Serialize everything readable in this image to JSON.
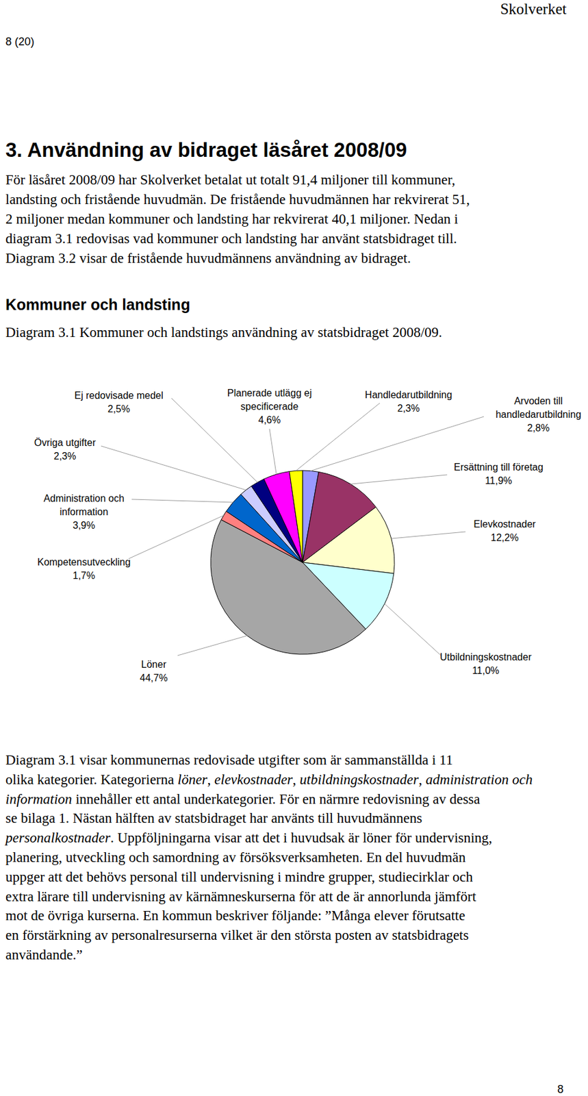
{
  "header": {
    "page": "8 (20)",
    "publisher": "Skolverket"
  },
  "title": "3. Användning av bidraget läsåret 2008/09",
  "intro": [
    "För läsåret 2008/09 har Skolverket betalat ut totalt 91,4 miljoner till kommuner,",
    "landsting och fristående huvudmän. De fristående huvudmännen har rekvirerat 51,",
    "2 miljoner medan kommuner och landsting har rekvirerat 40,1 miljoner. Nedan i",
    "diagram 3.1 redovisas vad kommuner och landsting har använt statsbidraget till.",
    "Diagram 3.2 visar de fristående huvudmännens användning av bidraget."
  ],
  "subheading": "Kommuner och landsting",
  "caption": "Diagram 3.1 Kommuner och landstings användning av statsbidraget 2008/09.",
  "chart_data": {
    "type": "pie",
    "categories": [
      "Arvoden till handledarutbildning",
      "Ersättning till företag",
      "Elevkostnader",
      "Utbildningskostnader",
      "Löner",
      "Kompetensutveckling",
      "Administration och information",
      "Övriga utgifter",
      "Ej redovisade medel",
      "Planerade utlägg ej specificerade",
      "Handledarutbildning"
    ],
    "values": [
      2.8,
      11.9,
      12.2,
      11.0,
      44.7,
      1.7,
      3.9,
      2.3,
      2.5,
      4.6,
      2.3
    ],
    "value_labels": [
      "2,8%",
      "11,9%",
      "12,2%",
      "11,0%",
      "44,7%",
      "1,7%",
      "3,9%",
      "2,3%",
      "2,5%",
      "4,6%",
      "2,3%"
    ],
    "colors": [
      "#9999FF",
      "#993366",
      "#FFFFCC",
      "#CCFFFF",
      "#A6A6A6",
      "#FF8080",
      "#0066CC",
      "#CCCCFF",
      "#000080",
      "#FF00FF",
      "#FFFF00"
    ],
    "data_labels": true
  },
  "body": [
    "Diagram 3.1 visar kommunernas redovisade utgifter som är sammanställda i 11",
    [
      "olika kategorier. Kategorierna ",
      {
        "em": "löner"
      },
      ", ",
      {
        "em": "elevkostnader"
      },
      ", ",
      {
        "em": "utbildningskostnader"
      },
      ", ",
      {
        "em": "administration och"
      }
    ],
    [
      {
        "em": "information"
      },
      " innehåller ett antal underkategorier. För en närmre redovisning av dessa"
    ],
    "se bilaga 1. Nästan hälften av statsbidraget har använts till huvudmännens",
    [
      {
        "em": "personalkostnader"
      },
      ". Uppföljningarna visar att det i huvudsak är löner för undervisning,"
    ],
    "planering, utveckling och samordning av försöksverksamheten. En del huvudmän",
    "uppger att det behövs personal till undervisning i mindre grupper, studiecirklar och",
    "extra lärare till undervisning av kärnämneskurserna för att de är annorlunda jämfört",
    "mot de övriga kurserna. En kommun beskriver följande: ”Många elever förutsatte",
    "en förstärkning av personalresurserna vilket är den största posten av statsbidragets",
    "användande.”"
  ],
  "footer": "8"
}
